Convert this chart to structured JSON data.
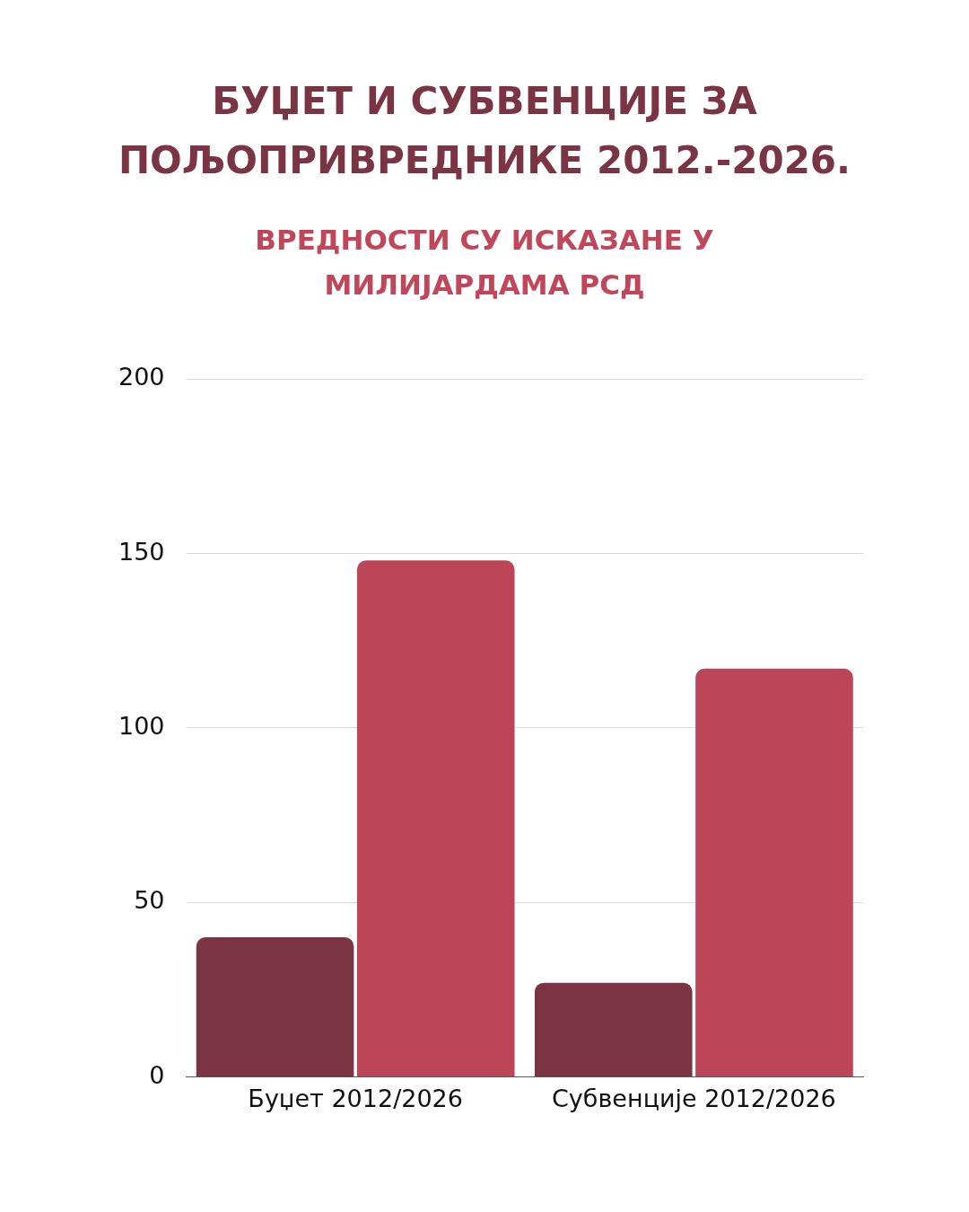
{
  "chart_data": {
    "type": "bar",
    "title": "БУЏЕТ И СУБВЕНЦИЈЕ ЗА ПОЉОПРИВРЕДНИКЕ 2012.-2026.",
    "subtitle": "ВРЕДНОСТИ СУ ИСКАЗАНЕ У МИЛИЈАРДАМА РСД",
    "categories": [
      "Буџет 2012/2026",
      "Субвенције 2012/2026"
    ],
    "series": [
      {
        "color": "#7a3444",
        "values": [
          40,
          27
        ]
      },
      {
        "color": "#bc4558",
        "values": [
          148,
          117
        ]
      }
    ],
    "ylim": [
      0,
      200
    ],
    "yticks": [
      0,
      50,
      100,
      150,
      200
    ],
    "grid": "y",
    "legend": false
  }
}
